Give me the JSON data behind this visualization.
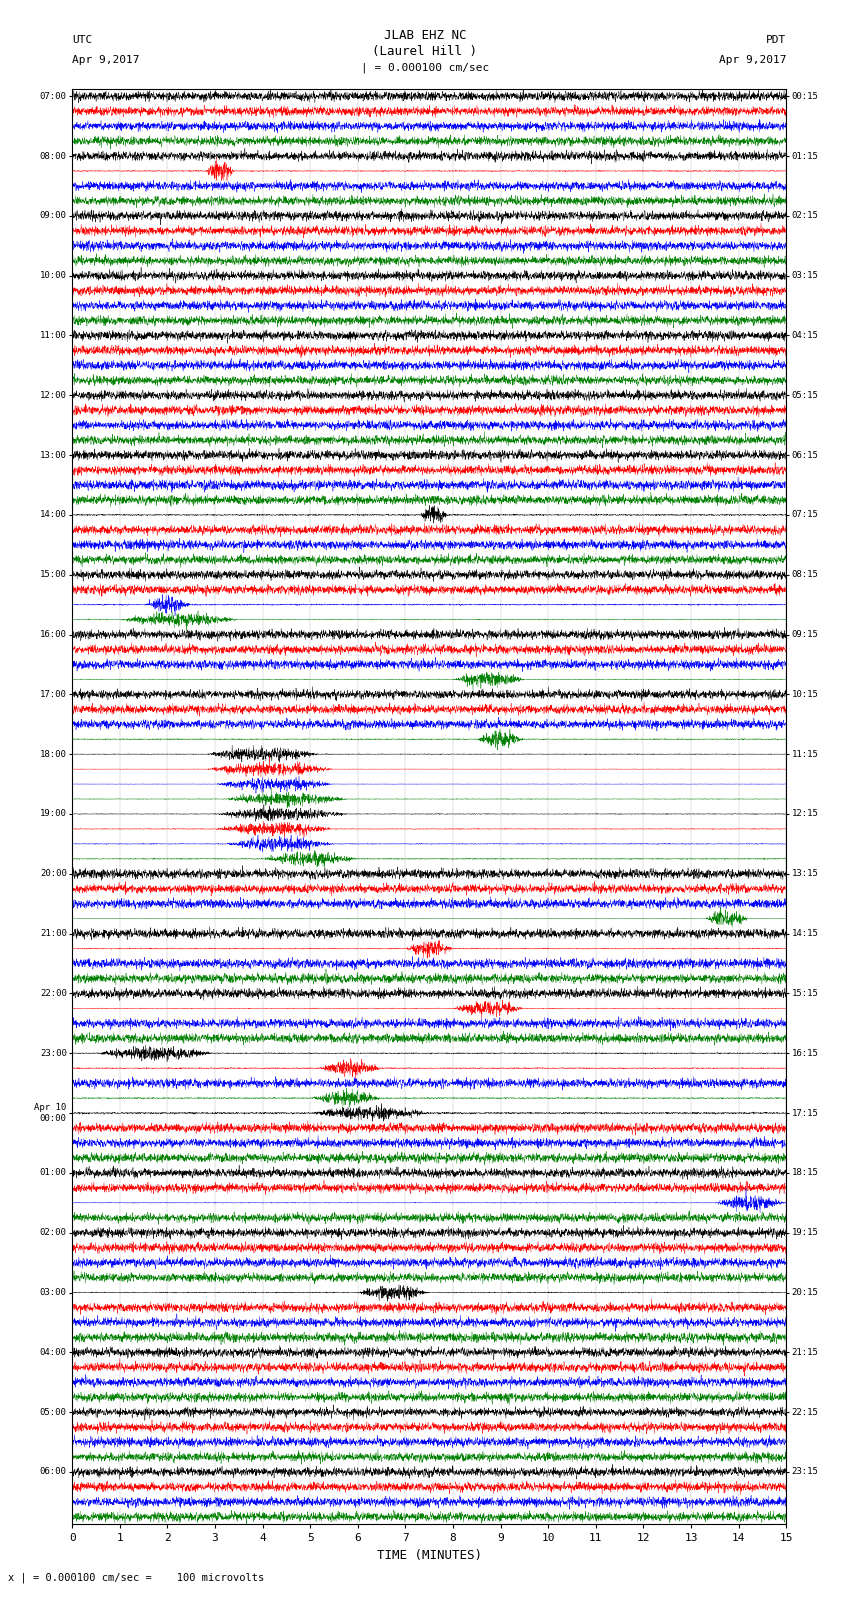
{
  "title_line1": "JLAB EHZ NC",
  "title_line2": "(Laurel Hill )",
  "scale_text": "| = 0.000100 cm/sec",
  "left_label_top": "UTC",
  "left_label_date": "Apr 9,2017",
  "right_label_top": "PDT",
  "right_label_date": "Apr 9,2017",
  "bottom_label": "TIME (MINUTES)",
  "bottom_note": "x | = 0.000100 cm/sec =    100 microvolts",
  "xlabel_ticks": [
    0,
    1,
    2,
    3,
    4,
    5,
    6,
    7,
    8,
    9,
    10,
    11,
    12,
    13,
    14,
    15
  ],
  "fig_width": 8.5,
  "fig_height": 16.13,
  "dpi": 100,
  "bg_color": "#ffffff",
  "trace_colors": [
    "black",
    "red",
    "blue",
    "green"
  ],
  "utc_labels": [
    "07:00",
    "08:00",
    "09:00",
    "10:00",
    "11:00",
    "12:00",
    "13:00",
    "14:00",
    "15:00",
    "16:00",
    "17:00",
    "18:00",
    "19:00",
    "20:00",
    "21:00",
    "22:00",
    "23:00",
    "Apr 10\n00:00",
    "01:00",
    "02:00",
    "03:00",
    "04:00",
    "05:00",
    "06:00"
  ],
  "pdt_labels": [
    "00:15",
    "01:15",
    "02:15",
    "03:15",
    "04:15",
    "05:15",
    "06:15",
    "07:15",
    "08:15",
    "09:15",
    "10:15",
    "11:15",
    "12:15",
    "13:15",
    "14:15",
    "15:15",
    "16:15",
    "17:15",
    "18:15",
    "19:15",
    "20:15",
    "21:15",
    "22:15",
    "23:15"
  ],
  "n_rows": 24,
  "n_traces_per_row": 4,
  "noise_base": 0.015,
  "special_events": [
    {
      "row": 1,
      "trace": 1,
      "tstart": 2.8,
      "tend": 3.4,
      "amplitude": 0.28,
      "color": "red"
    },
    {
      "row": 7,
      "trace": 0,
      "tstart": 7.3,
      "tend": 7.9,
      "amplitude": 0.35,
      "color": "red"
    },
    {
      "row": 8,
      "trace": 2,
      "tstart": 1.5,
      "tend": 2.5,
      "amplitude": 0.3,
      "color": "blue"
    },
    {
      "row": 8,
      "trace": 3,
      "tstart": 1.0,
      "tend": 3.5,
      "amplitude": 0.35,
      "color": "green"
    },
    {
      "row": 9,
      "trace": 3,
      "tstart": 8.0,
      "tend": 9.5,
      "amplitude": 0.3,
      "color": "green"
    },
    {
      "row": 10,
      "trace": 3,
      "tstart": 8.5,
      "tend": 9.5,
      "amplitude": 0.2,
      "color": "green"
    },
    {
      "row": 11,
      "trace": 0,
      "tstart": 2.8,
      "tend": 5.2,
      "amplitude": 0.55,
      "color": "black"
    },
    {
      "row": 11,
      "trace": 1,
      "tstart": 2.8,
      "tend": 5.5,
      "amplitude": 0.65,
      "color": "blue"
    },
    {
      "row": 11,
      "trace": 2,
      "tstart": 3.0,
      "tend": 5.5,
      "amplitude": 0.8,
      "color": "blue"
    },
    {
      "row": 11,
      "trace": 3,
      "tstart": 3.2,
      "tend": 5.8,
      "amplitude": 0.4,
      "color": "green"
    },
    {
      "row": 12,
      "trace": 0,
      "tstart": 3.0,
      "tend": 5.8,
      "amplitude": 0.5,
      "color": "black"
    },
    {
      "row": 12,
      "trace": 1,
      "tstart": 3.0,
      "tend": 5.5,
      "amplitude": 0.35,
      "color": "red"
    },
    {
      "row": 12,
      "trace": 2,
      "tstart": 3.2,
      "tend": 5.5,
      "amplitude": 0.4,
      "color": "blue"
    },
    {
      "row": 12,
      "trace": 3,
      "tstart": 4.0,
      "tend": 6.0,
      "amplitude": 0.25,
      "color": "green"
    },
    {
      "row": 13,
      "trace": 3,
      "tstart": 13.3,
      "tend": 14.2,
      "amplitude": 0.5,
      "color": "black"
    },
    {
      "row": 14,
      "trace": 1,
      "tstart": 7.0,
      "tend": 8.0,
      "amplitude": 0.25,
      "color": "red"
    },
    {
      "row": 15,
      "trace": 1,
      "tstart": 8.0,
      "tend": 9.5,
      "amplitude": 0.3,
      "color": "red"
    },
    {
      "row": 16,
      "trace": 0,
      "tstart": 0.5,
      "tend": 3.0,
      "amplitude": 0.4,
      "color": "black"
    },
    {
      "row": 16,
      "trace": 1,
      "tstart": 5.2,
      "tend": 6.5,
      "amplitude": 0.35,
      "color": "red"
    },
    {
      "row": 16,
      "trace": 3,
      "tstart": 5.0,
      "tend": 6.5,
      "amplitude": 0.25,
      "color": "green"
    },
    {
      "row": 17,
      "trace": 0,
      "tstart": 5.0,
      "tend": 7.5,
      "amplitude": 0.25,
      "color": "red"
    },
    {
      "row": 18,
      "trace": 2,
      "tstart": 13.5,
      "tend": 15.0,
      "amplitude": 0.35,
      "color": "blue"
    },
    {
      "row": 20,
      "trace": 0,
      "tstart": 6.0,
      "tend": 7.5,
      "amplitude": 0.3,
      "color": "black"
    }
  ]
}
